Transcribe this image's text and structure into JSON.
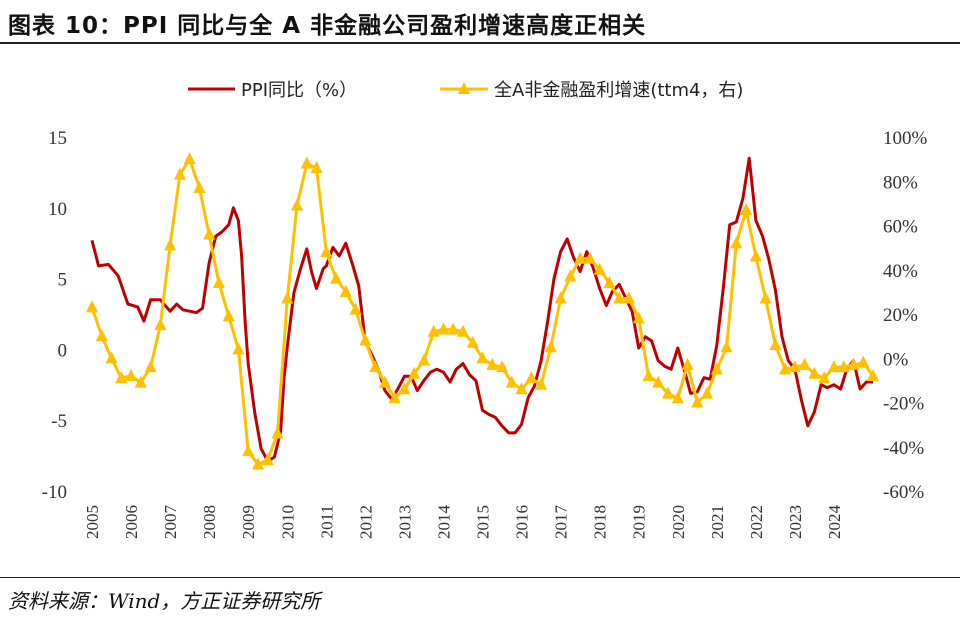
{
  "header": {
    "title": "图表 10：PPI 同比与全 A 非金融公司盈利增速高度正相关"
  },
  "footer": {
    "source": "资料来源：Wind，方正证券研究所"
  },
  "colors": {
    "ppi": "#C00000",
    "profit": "#FFC000",
    "rule": "#222222"
  },
  "chart_data": {
    "type": "line",
    "legend_position": "top-center",
    "grid": false,
    "xlim": [
      2005.0,
      2025.0
    ],
    "x_ticks": [
      "2005",
      "2006",
      "2007",
      "2008",
      "2009",
      "2010",
      "2011",
      "2012",
      "2013",
      "2014",
      "2015",
      "2016",
      "2017",
      "2018",
      "2019",
      "2020",
      "2021",
      "2022",
      "2023",
      "2024"
    ],
    "y_left": {
      "lim": [
        -10,
        15
      ],
      "ticks": [
        "15",
        "10",
        "5",
        "0",
        "-5",
        "-10"
      ],
      "tick_values": [
        15,
        10,
        5,
        0,
        -5,
        -10
      ]
    },
    "y_right": {
      "lim": [
        -60,
        100
      ],
      "ticks": [
        "100%",
        "80%",
        "60%",
        "40%",
        "20%",
        "0%",
        "-20%",
        "-40%",
        "-60%"
      ],
      "tick_values": [
        100,
        80,
        60,
        40,
        20,
        0,
        -20,
        -40,
        -60
      ]
    },
    "series": [
      {
        "name": "PPI同比（%）",
        "axis": "left",
        "marker": "none",
        "points": [
          [
            2005.0,
            7.7
          ],
          [
            2005.17,
            5.9
          ],
          [
            2005.42,
            6.0
          ],
          [
            2005.67,
            5.2
          ],
          [
            2005.92,
            3.2
          ],
          [
            2006.17,
            3.0
          ],
          [
            2006.33,
            2.0
          ],
          [
            2006.5,
            3.5
          ],
          [
            2006.75,
            3.5
          ],
          [
            2007.0,
            2.7
          ],
          [
            2007.17,
            3.2
          ],
          [
            2007.33,
            2.8
          ],
          [
            2007.5,
            2.7
          ],
          [
            2007.67,
            2.6
          ],
          [
            2007.83,
            2.9
          ],
          [
            2008.0,
            6.1
          ],
          [
            2008.17,
            8.0
          ],
          [
            2008.33,
            8.3
          ],
          [
            2008.5,
            8.8
          ],
          [
            2008.62,
            10.0
          ],
          [
            2008.75,
            9.1
          ],
          [
            2008.83,
            6.6
          ],
          [
            2008.92,
            2.0
          ],
          [
            2009.0,
            -1.0
          ],
          [
            2009.17,
            -4.5
          ],
          [
            2009.33,
            -7.0
          ],
          [
            2009.5,
            -7.9
          ],
          [
            2009.67,
            -7.6
          ],
          [
            2009.83,
            -5.8
          ],
          [
            2009.92,
            -2.0
          ],
          [
            2010.0,
            0.2
          ],
          [
            2010.17,
            4.0
          ],
          [
            2010.33,
            5.6
          ],
          [
            2010.5,
            7.1
          ],
          [
            2010.62,
            5.5
          ],
          [
            2010.75,
            4.3
          ],
          [
            2010.92,
            5.7
          ],
          [
            2011.0,
            5.9
          ],
          [
            2011.17,
            7.2
          ],
          [
            2011.33,
            6.6
          ],
          [
            2011.5,
            7.5
          ],
          [
            2011.67,
            6.0
          ],
          [
            2011.83,
            4.5
          ],
          [
            2012.0,
            0.5
          ],
          [
            2012.17,
            -0.4
          ],
          [
            2012.33,
            -1.4
          ],
          [
            2012.5,
            -2.9
          ],
          [
            2012.67,
            -3.5
          ],
          [
            2012.83,
            -2.8
          ],
          [
            2013.0,
            -1.9
          ],
          [
            2013.17,
            -1.9
          ],
          [
            2013.33,
            -2.9
          ],
          [
            2013.5,
            -2.2
          ],
          [
            2013.67,
            -1.6
          ],
          [
            2013.83,
            -1.4
          ],
          [
            2014.0,
            -1.6
          ],
          [
            2014.17,
            -2.3
          ],
          [
            2014.33,
            -1.4
          ],
          [
            2014.5,
            -1.0
          ],
          [
            2014.67,
            -1.8
          ],
          [
            2014.83,
            -2.2
          ],
          [
            2015.0,
            -4.3
          ],
          [
            2015.17,
            -4.6
          ],
          [
            2015.33,
            -4.8
          ],
          [
            2015.5,
            -5.4
          ],
          [
            2015.67,
            -5.9
          ],
          [
            2015.83,
            -5.9
          ],
          [
            2016.0,
            -5.3
          ],
          [
            2016.17,
            -3.4
          ],
          [
            2016.33,
            -2.6
          ],
          [
            2016.5,
            -0.8
          ],
          [
            2016.67,
            2.0
          ],
          [
            2016.83,
            5.0
          ],
          [
            2017.0,
            6.9
          ],
          [
            2017.17,
            7.8
          ],
          [
            2017.33,
            6.5
          ],
          [
            2017.5,
            5.5
          ],
          [
            2017.67,
            6.9
          ],
          [
            2017.83,
            5.8
          ],
          [
            2018.0,
            4.3
          ],
          [
            2018.17,
            3.1
          ],
          [
            2018.33,
            4.1
          ],
          [
            2018.5,
            4.6
          ],
          [
            2018.67,
            3.6
          ],
          [
            2018.83,
            2.7
          ],
          [
            2019.0,
            0.1
          ],
          [
            2019.17,
            0.9
          ],
          [
            2019.33,
            0.6
          ],
          [
            2019.5,
            -0.8
          ],
          [
            2019.67,
            -1.2
          ],
          [
            2019.83,
            -1.4
          ],
          [
            2020.0,
            0.1
          ],
          [
            2020.17,
            -1.5
          ],
          [
            2020.33,
            -3.1
          ],
          [
            2020.5,
            -3.0
          ],
          [
            2020.67,
            -2.0
          ],
          [
            2020.83,
            -2.1
          ],
          [
            2021.0,
            0.3
          ],
          [
            2021.17,
            4.4
          ],
          [
            2021.33,
            8.8
          ],
          [
            2021.5,
            9.0
          ],
          [
            2021.67,
            10.7
          ],
          [
            2021.83,
            13.5
          ],
          [
            2022.0,
            9.1
          ],
          [
            2022.17,
            8.0
          ],
          [
            2022.33,
            6.4
          ],
          [
            2022.5,
            4.2
          ],
          [
            2022.67,
            0.9
          ],
          [
            2022.83,
            -0.8
          ],
          [
            2023.0,
            -1.4
          ],
          [
            2023.17,
            -3.6
          ],
          [
            2023.33,
            -5.4
          ],
          [
            2023.5,
            -4.4
          ],
          [
            2023.67,
            -2.5
          ],
          [
            2023.83,
            -2.7
          ],
          [
            2024.0,
            -2.5
          ],
          [
            2024.17,
            -2.8
          ],
          [
            2024.33,
            -1.4
          ],
          [
            2024.5,
            -0.8
          ],
          [
            2024.67,
            -2.8
          ],
          [
            2024.83,
            -2.3
          ],
          [
            2025.0,
            -2.3
          ]
        ]
      },
      {
        "name": "全A非金融盈利增速(ttm4，右)",
        "axis": "right",
        "marker": "triangle",
        "points": [
          [
            2005.0,
            23
          ],
          [
            2005.25,
            10
          ],
          [
            2005.5,
            0
          ],
          [
            2005.75,
            -9
          ],
          [
            2006.0,
            -8
          ],
          [
            2006.25,
            -11
          ],
          [
            2006.5,
            -4
          ],
          [
            2006.75,
            15
          ],
          [
            2007.0,
            51
          ],
          [
            2007.25,
            83
          ],
          [
            2007.5,
            90
          ],
          [
            2007.75,
            77
          ],
          [
            2008.0,
            56
          ],
          [
            2008.25,
            34
          ],
          [
            2008.5,
            19
          ],
          [
            2008.75,
            4
          ],
          [
            2009.0,
            -42
          ],
          [
            2009.25,
            -48
          ],
          [
            2009.5,
            -46
          ],
          [
            2009.75,
            -34
          ],
          [
            2010.0,
            27
          ],
          [
            2010.25,
            69
          ],
          [
            2010.5,
            88
          ],
          [
            2010.75,
            86
          ],
          [
            2011.0,
            48
          ],
          [
            2011.25,
            36
          ],
          [
            2011.5,
            30
          ],
          [
            2011.75,
            22
          ],
          [
            2012.0,
            8
          ],
          [
            2012.25,
            -4
          ],
          [
            2012.5,
            -11
          ],
          [
            2012.75,
            -18
          ],
          [
            2013.0,
            -14
          ],
          [
            2013.25,
            -7
          ],
          [
            2013.5,
            -1
          ],
          [
            2013.75,
            12
          ],
          [
            2014.0,
            13
          ],
          [
            2014.25,
            13
          ],
          [
            2014.5,
            12
          ],
          [
            2014.75,
            7
          ],
          [
            2015.0,
            0
          ],
          [
            2015.25,
            -3
          ],
          [
            2015.5,
            -4
          ],
          [
            2015.75,
            -11
          ],
          [
            2016.0,
            -14
          ],
          [
            2016.25,
            -9
          ],
          [
            2016.5,
            -12
          ],
          [
            2016.75,
            5
          ],
          [
            2017.0,
            27
          ],
          [
            2017.25,
            37
          ],
          [
            2017.5,
            45
          ],
          [
            2017.75,
            45
          ],
          [
            2018.0,
            40
          ],
          [
            2018.25,
            34
          ],
          [
            2018.5,
            27
          ],
          [
            2018.75,
            27
          ],
          [
            2019.0,
            18
          ],
          [
            2019.25,
            -8
          ],
          [
            2019.5,
            -11
          ],
          [
            2019.75,
            -16
          ],
          [
            2020.0,
            -18
          ],
          [
            2020.25,
            -3
          ],
          [
            2020.5,
            -20
          ],
          [
            2020.75,
            -16
          ],
          [
            2021.0,
            -5
          ],
          [
            2021.25,
            5
          ],
          [
            2021.5,
            52
          ],
          [
            2021.75,
            67
          ],
          [
            2022.0,
            46
          ],
          [
            2022.25,
            27
          ],
          [
            2022.5,
            6
          ],
          [
            2022.75,
            -5
          ],
          [
            2023.0,
            -4
          ],
          [
            2023.25,
            -3
          ],
          [
            2023.5,
            -7
          ],
          [
            2023.75,
            -9
          ],
          [
            2024.0,
            -4
          ],
          [
            2024.25,
            -4
          ],
          [
            2024.5,
            -3
          ],
          [
            2024.75,
            -2
          ],
          [
            2025.0,
            -8
          ]
        ]
      }
    ]
  }
}
